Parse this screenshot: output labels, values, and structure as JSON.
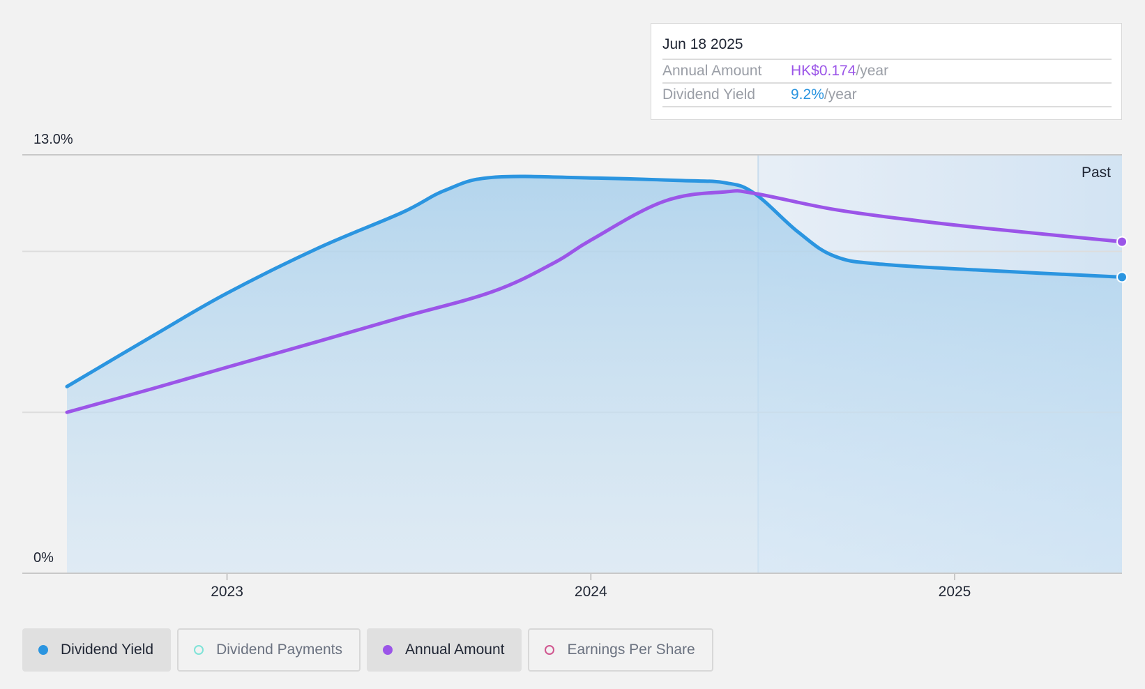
{
  "tooltip": {
    "date": "Jun 18 2025",
    "annual_amount_label": "Annual Amount",
    "annual_amount_value": "HK$0.174",
    "annual_amount_unit": "/year",
    "dividend_yield_label": "Dividend Yield",
    "dividend_yield_value": "9.2%",
    "dividend_yield_unit": "/year"
  },
  "legend": {
    "dividend_yield": "Dividend Yield",
    "dividend_payments": "Dividend Payments",
    "annual_amount": "Annual Amount",
    "earnings_per_share": "Earnings Per Share"
  },
  "colors": {
    "dividend_yield": "#2b95e0",
    "annual_amount": "#9b55e8",
    "dividend_payments": "#7fe3d8",
    "earnings_per_share": "#d0568f"
  },
  "chart_data": {
    "type": "line",
    "y_ticks": [
      "13.0%",
      "0%"
    ],
    "ylim": [
      0,
      13
    ],
    "x_ticks": [
      {
        "label": "2023",
        "x": 2023.0
      },
      {
        "label": "2024",
        "x": 2024.0
      },
      {
        "label": "2025",
        "x": 2025.0
      }
    ],
    "xlim": [
      2022.56,
      2025.46
    ],
    "past_label": "Past",
    "past_start": 2024.46,
    "gridlines": [
      13,
      10,
      5,
      0
    ],
    "series": [
      {
        "name": "Dividend Yield",
        "color": "#2b95e0",
        "filled": true,
        "points": [
          [
            2022.56,
            5.8
          ],
          [
            2022.8,
            7.4
          ],
          [
            2023.0,
            8.7
          ],
          [
            2023.25,
            10.1
          ],
          [
            2023.48,
            11.2
          ],
          [
            2023.6,
            11.9
          ],
          [
            2023.73,
            12.3
          ],
          [
            2024.0,
            12.28
          ],
          [
            2024.25,
            12.2
          ],
          [
            2024.37,
            12.13
          ],
          [
            2024.45,
            11.8
          ],
          [
            2024.57,
            10.6
          ],
          [
            2024.67,
            9.85
          ],
          [
            2024.8,
            9.6
          ],
          [
            2025.1,
            9.4
          ],
          [
            2025.46,
            9.2
          ]
        ]
      },
      {
        "name": "Annual Amount",
        "color": "#9b55e8",
        "filled": false,
        "points": [
          [
            2022.56,
            5.0
          ],
          [
            2022.8,
            5.75
          ],
          [
            2023.0,
            6.4
          ],
          [
            2023.25,
            7.2
          ],
          [
            2023.48,
            7.95
          ],
          [
            2023.73,
            8.75
          ],
          [
            2023.9,
            9.65
          ],
          [
            2024.0,
            10.35
          ],
          [
            2024.2,
            11.55
          ],
          [
            2024.37,
            11.85
          ],
          [
            2024.45,
            11.8
          ],
          [
            2024.67,
            11.3
          ],
          [
            2024.9,
            10.95
          ],
          [
            2025.1,
            10.7
          ],
          [
            2025.46,
            10.3
          ]
        ]
      }
    ]
  }
}
